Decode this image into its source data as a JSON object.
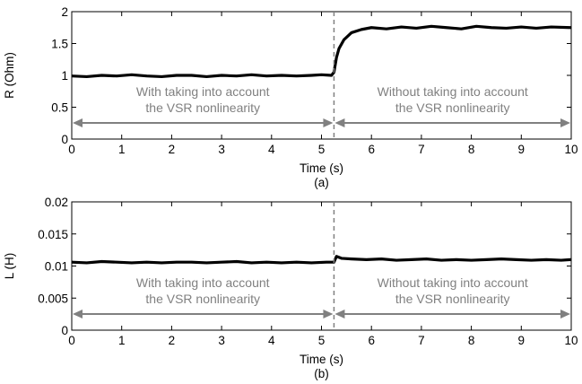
{
  "chart_data": [
    {
      "type": "line",
      "caption": "(a)",
      "xlabel": "Time (s)",
      "ylabel": "R (Ohm)",
      "xlim": [
        0,
        10
      ],
      "ylim": [
        0,
        2
      ],
      "xticks": [
        0,
        1,
        2,
        3,
        4,
        5,
        6,
        7,
        8,
        9,
        10
      ],
      "yticks": [
        0,
        0.5,
        1,
        1.5,
        2
      ],
      "ytick_labels": [
        "0",
        "0.5",
        "1",
        "1.5",
        "2"
      ],
      "grid": false,
      "series_color": "#000000",
      "series": [
        {
          "x": [
            0,
            0.3,
            0.6,
            0.9,
            1.2,
            1.5,
            1.8,
            2.1,
            2.4,
            2.7,
            3.0,
            3.3,
            3.6,
            3.9,
            4.2,
            4.5,
            4.8,
            5.0,
            5.2,
            5.25,
            5.3,
            5.35,
            5.45,
            5.6,
            5.8,
            6.0,
            6.3,
            6.6,
            6.9,
            7.2,
            7.5,
            7.8,
            8.1,
            8.4,
            8.7,
            9.0,
            9.3,
            9.6,
            10.0
          ],
          "y": [
            0.99,
            0.98,
            1.0,
            0.99,
            1.01,
            0.99,
            0.98,
            1.0,
            1.0,
            0.98,
            1.0,
            0.99,
            1.01,
            0.99,
            1.0,
            0.99,
            1.0,
            1.01,
            1.0,
            1.05,
            1.28,
            1.42,
            1.56,
            1.67,
            1.72,
            1.75,
            1.73,
            1.76,
            1.74,
            1.77,
            1.75,
            1.73,
            1.77,
            1.75,
            1.74,
            1.76,
            1.74,
            1.76,
            1.75
          ]
        }
      ],
      "switch_time": 5.25,
      "annotation_left": [
        "With taking into account",
        "the VSR nonlinearity"
      ],
      "annotation_right": [
        "Without taking into account",
        "the VSR nonlinearity"
      ],
      "annotation_color": "#808080"
    },
    {
      "type": "line",
      "caption": "(b)",
      "xlabel": "Time (s)",
      "ylabel": "L (H)",
      "xlim": [
        0,
        10
      ],
      "ylim": [
        0,
        0.02
      ],
      "xticks": [
        0,
        1,
        2,
        3,
        4,
        5,
        6,
        7,
        8,
        9,
        10
      ],
      "yticks": [
        0,
        0.005,
        0.01,
        0.015,
        0.02
      ],
      "ytick_labels": [
        "0",
        "0.005",
        "0.01",
        "0.015",
        "0.02"
      ],
      "grid": false,
      "series_color": "#000000",
      "series": [
        {
          "x": [
            0,
            0.3,
            0.6,
            0.9,
            1.2,
            1.5,
            1.8,
            2.1,
            2.4,
            2.7,
            3.0,
            3.3,
            3.6,
            3.9,
            4.2,
            4.5,
            4.8,
            5.1,
            5.25,
            5.3,
            5.4,
            5.6,
            5.9,
            6.2,
            6.5,
            6.8,
            7.1,
            7.4,
            7.7,
            8.0,
            8.3,
            8.6,
            8.9,
            9.2,
            9.5,
            9.8,
            10.0
          ],
          "y": [
            0.0106,
            0.0105,
            0.0107,
            0.0106,
            0.0105,
            0.0106,
            0.0105,
            0.0106,
            0.0106,
            0.0105,
            0.0106,
            0.0107,
            0.0105,
            0.0106,
            0.0105,
            0.0106,
            0.0105,
            0.0106,
            0.0106,
            0.0115,
            0.0112,
            0.0111,
            0.011,
            0.0111,
            0.0109,
            0.011,
            0.0111,
            0.0109,
            0.011,
            0.0109,
            0.011,
            0.0111,
            0.011,
            0.0109,
            0.011,
            0.0109,
            0.011
          ]
        }
      ],
      "switch_time": 5.25,
      "annotation_left": [
        "With taking into account",
        "the VSR nonlinearity"
      ],
      "annotation_right": [
        "Without taking into account",
        "the VSR nonlinearity"
      ],
      "annotation_color": "#808080"
    }
  ]
}
